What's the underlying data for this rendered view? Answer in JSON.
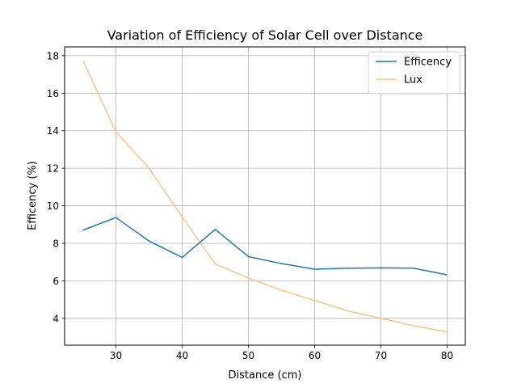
{
  "chart_data": {
    "type": "line",
    "title": "Variation of Efficiency of Solar Cell over Distance",
    "xlabel": "Distance (cm)",
    "ylabel": "Efficency (%)",
    "xlim": [
      22.25,
      82.75
    ],
    "ylim": [
      2.57,
      18.47
    ],
    "xticks": [
      30,
      40,
      50,
      60,
      70,
      80
    ],
    "yticks": [
      4,
      6,
      8,
      10,
      12,
      14,
      16,
      18
    ],
    "grid": true,
    "legend_position": "top-right",
    "x": [
      25,
      30,
      35,
      40,
      45,
      50,
      55,
      60,
      65,
      70,
      75,
      80
    ],
    "series": [
      {
        "name": "Efficency",
        "color": "#1f77b4",
        "opacity": 1.0,
        "values": [
          8.7,
          9.37,
          8.12,
          7.25,
          8.74,
          7.29,
          6.92,
          6.62,
          6.67,
          6.69,
          6.67,
          6.32
        ]
      },
      {
        "name": "Lux",
        "color": "#ffbb78",
        "opacity": 0.9,
        "values": [
          17.75,
          13.95,
          12.0,
          9.4,
          6.9,
          6.15,
          5.5,
          4.95,
          4.4,
          4.0,
          3.6,
          3.28
        ]
      }
    ]
  }
}
